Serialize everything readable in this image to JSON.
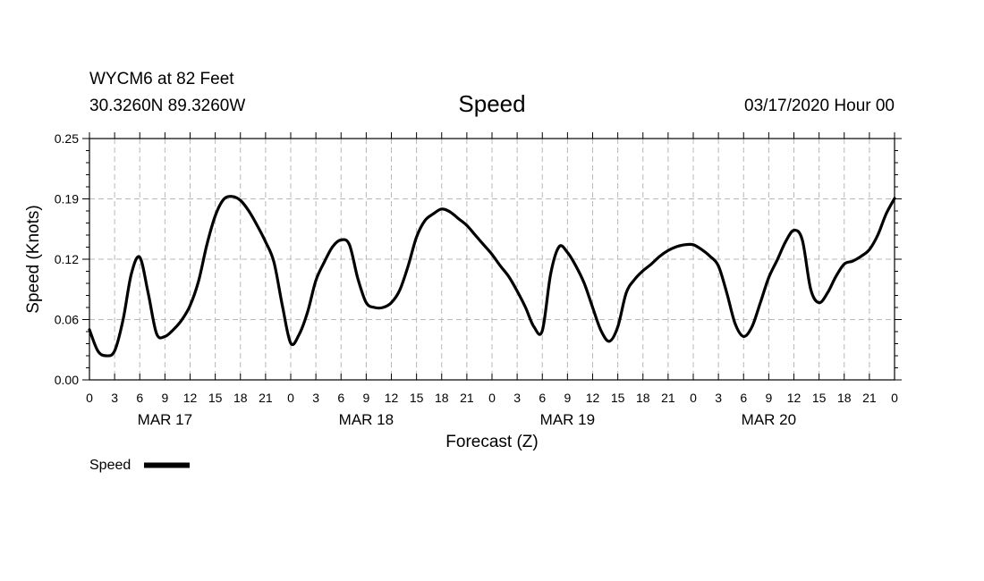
{
  "header": {
    "station_line": "WYCM6 at 82 Feet",
    "coord_line": "30.3260N 89.3260W",
    "title": "Speed",
    "issue_time": "03/17/2020 Hour 00"
  },
  "chart_data": {
    "type": "line",
    "title": "Speed",
    "xlabel": "Forecast (Z)",
    "ylabel": "Speed (Knots)",
    "ylim": [
      0,
      0.25
    ],
    "y_ticks": [
      "0.00",
      "0.06",
      "0.12",
      "0.19",
      "0.25"
    ],
    "x_hour_ticks": [
      "0",
      "3",
      "6",
      "9",
      "12",
      "15",
      "18",
      "21",
      "0",
      "3",
      "6",
      "9",
      "12",
      "15",
      "18",
      "21",
      "0",
      "3",
      "6",
      "9",
      "12",
      "15",
      "18",
      "21",
      "0",
      "3",
      "6",
      "9",
      "12",
      "15",
      "18",
      "21",
      "0"
    ],
    "x_range_hours": [
      0,
      96
    ],
    "day_labels": [
      {
        "label": "MAR 17",
        "hour": 9
      },
      {
        "label": "MAR 18",
        "hour": 33
      },
      {
        "label": "MAR 19",
        "hour": 57
      },
      {
        "label": "MAR 20",
        "hour": 81
      }
    ],
    "grid": true,
    "legend": {
      "position": "bottom-left",
      "label": "Speed"
    },
    "series": [
      {
        "name": "Speed",
        "color": "#000000",
        "x": [
          0,
          1,
          2,
          3,
          4,
          5,
          6,
          7,
          8,
          9,
          10,
          11,
          12,
          13,
          14,
          15,
          16,
          17,
          18,
          19,
          20,
          21,
          22,
          23,
          24,
          25,
          26,
          27,
          28,
          29,
          30,
          31,
          32,
          33,
          34,
          35,
          36,
          37,
          38,
          39,
          40,
          41,
          42,
          43,
          44,
          45,
          46,
          47,
          48,
          49,
          50,
          51,
          52,
          53,
          54,
          55,
          56,
          57,
          58,
          59,
          60,
          61,
          62,
          63,
          64,
          65,
          66,
          67,
          68,
          69,
          70,
          71,
          72,
          73,
          74,
          75,
          76,
          77,
          78,
          79,
          80,
          81,
          82,
          83,
          84,
          85,
          86,
          87,
          88,
          89,
          90,
          91,
          92,
          93,
          94,
          95,
          96
        ],
        "values": [
          0.052,
          0.03,
          0.025,
          0.03,
          0.062,
          0.11,
          0.127,
          0.09,
          0.048,
          0.045,
          0.052,
          0.062,
          0.077,
          0.102,
          0.14,
          0.17,
          0.187,
          0.19,
          0.186,
          0.175,
          0.16,
          0.143,
          0.122,
          0.077,
          0.038,
          0.047,
          0.07,
          0.103,
          0.122,
          0.138,
          0.145,
          0.14,
          0.105,
          0.08,
          0.075,
          0.075,
          0.08,
          0.093,
          0.118,
          0.148,
          0.165,
          0.172,
          0.177,
          0.174,
          0.167,
          0.16,
          0.15,
          0.14,
          0.13,
          0.118,
          0.107,
          0.092,
          0.075,
          0.055,
          0.051,
          0.11,
          0.138,
          0.132,
          0.118,
          0.1,
          0.075,
          0.051,
          0.04,
          0.055,
          0.09,
          0.104,
          0.113,
          0.12,
          0.128,
          0.134,
          0.138,
          0.14,
          0.14,
          0.135,
          0.128,
          0.118,
          0.09,
          0.058,
          0.045,
          0.055,
          0.08,
          0.106,
          0.124,
          0.143,
          0.155,
          0.145,
          0.094,
          0.08,
          0.09,
          0.107,
          0.12,
          0.123,
          0.128,
          0.135,
          0.15,
          0.172,
          0.188
        ]
      }
    ]
  }
}
